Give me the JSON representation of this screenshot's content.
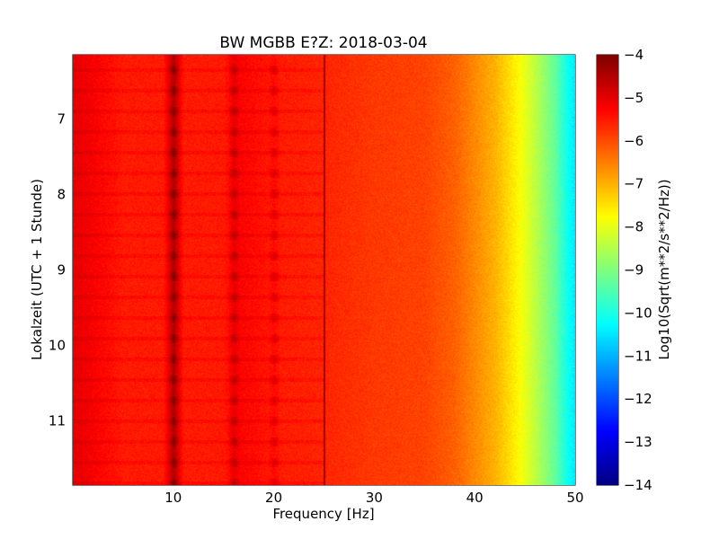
{
  "chart_data": {
    "type": "heatmap",
    "title": "BW MGBB E?Z: 2018-03-04",
    "xlabel": "Frequency [Hz]",
    "ylabel": "Lokalzeit (UTC + 1 Stunde)",
    "xlim": [
      0,
      50
    ],
    "ylim": [
      6.15,
      11.85
    ],
    "y_inverted": true,
    "x_ticks": [
      10,
      20,
      30,
      40,
      50
    ],
    "x_tick_labels": [
      "10",
      "20",
      "30",
      "40",
      "50"
    ],
    "y_ticks": [
      7,
      8,
      9,
      10,
      11
    ],
    "y_tick_labels": [
      "7",
      "8",
      "9",
      "10",
      "11"
    ],
    "grid": true,
    "colormap": "jet",
    "colorbar": {
      "label": "Log10(Sqrt(m**2/s**2/Hz))",
      "range": [
        -14,
        -4
      ],
      "ticks": [
        -4,
        -5,
        -6,
        -7,
        -8,
        -9,
        -10,
        -11,
        -12,
        -13,
        -14
      ],
      "tick_labels": [
        "−4",
        "−5",
        "−6",
        "−7",
        "−8",
        "−9",
        "−10",
        "−11",
        "−12",
        "−13",
        "−14"
      ]
    },
    "spectral_profile": {
      "frequency_hz": [
        0,
        2,
        5,
        9,
        10,
        11,
        15,
        16,
        20,
        25,
        30,
        35,
        38,
        40,
        42,
        44,
        46,
        48,
        49,
        50
      ],
      "log10_amplitude": [
        -5.0,
        -5.2,
        -5.5,
        -5.5,
        -4.6,
        -5.5,
        -5.5,
        -5.2,
        -5.5,
        -5.6,
        -5.8,
        -5.9,
        -6.2,
        -6.6,
        -7.0,
        -7.6,
        -8.4,
        -9.3,
        -10.0,
        -10.5
      ]
    },
    "spectral_lines_hz": [
      10,
      16,
      20,
      25
    ],
    "colors": {
      "jet": [
        "#00007f",
        "#0000ff",
        "#007fff",
        "#00ffff",
        "#7fff7f",
        "#ffff00",
        "#ff7f00",
        "#ff0000",
        "#7f0000"
      ]
    }
  }
}
